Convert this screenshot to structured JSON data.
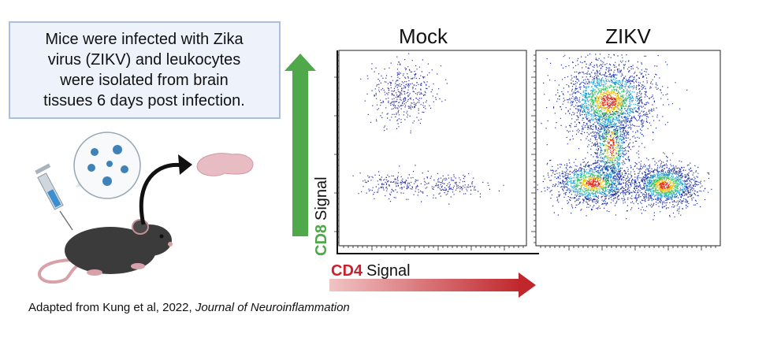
{
  "info_box": {
    "lines": [
      "Mice were infected with Zika",
      "virus (ZIKV) and leukocytes",
      "were isolated from brain",
      "tissues 6 days post infection."
    ]
  },
  "panels": [
    {
      "title": "Mock"
    },
    {
      "title": "ZIKV"
    }
  ],
  "y_axis": {
    "marker": "CD8",
    "label": "Signal"
  },
  "x_axis": {
    "marker": "CD4",
    "label": "Signal"
  },
  "caption": {
    "text": "Adapted from Kung et al, 2022,",
    "journal": "Journal of Neuroinflammation"
  }
}
